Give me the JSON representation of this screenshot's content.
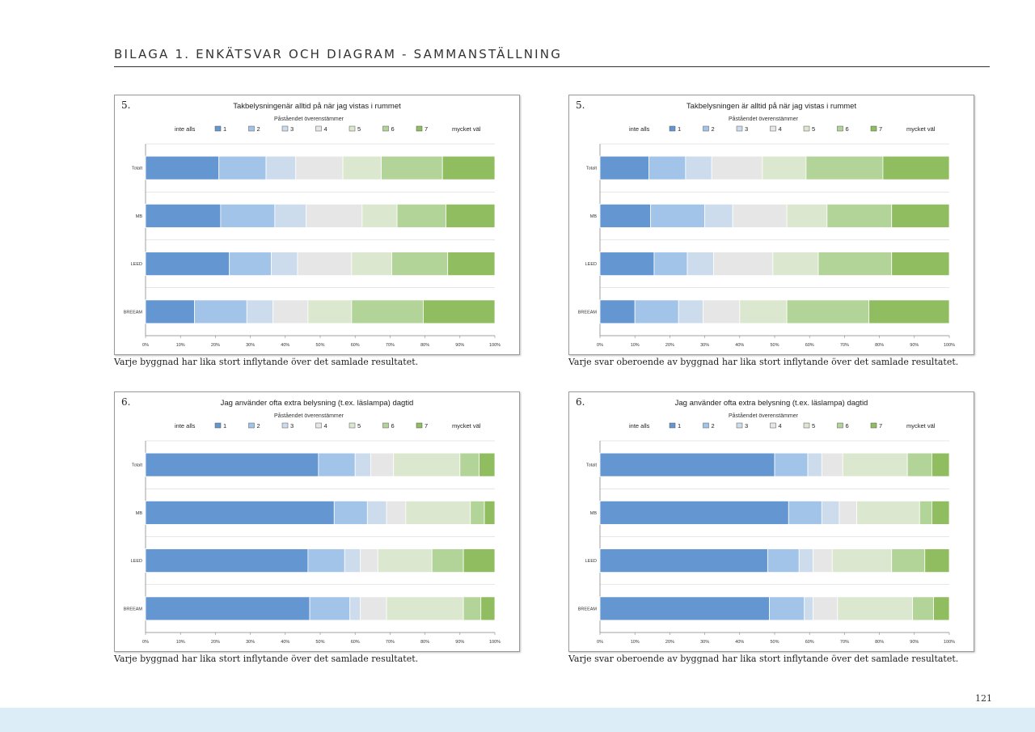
{
  "header": {
    "title": "BILAGA 1. ENKÄTSVAR OCH DIAGRAM - SAMMANSTÄLLNING"
  },
  "page_number": "121",
  "colors": [
    "#6496d2",
    "#a3c4e9",
    "#ccdcec",
    "#e6e6e6",
    "#dbe7ce",
    "#b3d498",
    "#8fbd5f"
  ],
  "charts": [
    {
      "caption": "Varje byggnad har lika stort inflytande över det samlade resultatet."
    },
    {
      "caption": "Varje svar oberoende av byggnad har lika stort inflytande över det samlade resultatet."
    },
    {
      "caption": "Varje byggnad har lika stort inflytande över det samlade resultatet."
    },
    {
      "caption": "Varje svar oberoende av byggnad har lika stort inflytande över det samlade resultatet."
    }
  ],
  "chart_data": [
    {
      "type": "bar",
      "orientation": "horizontal",
      "stacked": true,
      "number": "5.",
      "title": "Takbelysningenär alltid på när jag vistas i rummet",
      "subtitle": "Påståendet överenstämmer",
      "legend_low": "inte alls",
      "legend_high": "mycket väl",
      "legend_placement": "top",
      "categories": [
        "Totalt",
        "MB",
        "LEED",
        "BREEAM"
      ],
      "series": [
        {
          "name": "1",
          "values": [
            21,
            21.5,
            24,
            14
          ]
        },
        {
          "name": "2",
          "values": [
            13.5,
            15.5,
            12,
            15
          ]
        },
        {
          "name": "3",
          "values": [
            8.5,
            9,
            7.5,
            7.5
          ]
        },
        {
          "name": "4",
          "values": [
            13.5,
            16,
            15.5,
            10
          ]
        },
        {
          "name": "5",
          "values": [
            11,
            10,
            11.5,
            12.5
          ]
        },
        {
          "name": "6",
          "values": [
            17.5,
            14,
            16,
            20.5
          ]
        },
        {
          "name": "7",
          "values": [
            15,
            14,
            13.5,
            20.5
          ]
        }
      ],
      "xticks": [
        "0%",
        "10%",
        "20%",
        "30%",
        "40%",
        "50%",
        "60%",
        "70%",
        "80%",
        "90%",
        "100%"
      ],
      "xlim": [
        0,
        100
      ],
      "grid": true
    },
    {
      "type": "bar",
      "orientation": "horizontal",
      "stacked": true,
      "number": "5.",
      "title": "Takbelysningen är alltid på när jag vistas i rummet",
      "subtitle": "Påståendet överenstämmer",
      "legend_low": "inte alls",
      "legend_high": "mycket väl",
      "legend_placement": "top",
      "categories": [
        "Totalt",
        "MB",
        "LEED",
        "BREEAM"
      ],
      "series": [
        {
          "name": "1",
          "values": [
            14,
            14.5,
            15.5,
            10
          ]
        },
        {
          "name": "2",
          "values": [
            10.5,
            15.5,
            9.5,
            12.5
          ]
        },
        {
          "name": "3",
          "values": [
            7.5,
            8,
            7.5,
            7
          ]
        },
        {
          "name": "4",
          "values": [
            14.5,
            15.5,
            17,
            10.5
          ]
        },
        {
          "name": "5",
          "values": [
            12.5,
            11.5,
            13,
            13.5
          ]
        },
        {
          "name": "6",
          "values": [
            22,
            18.5,
            21,
            23.5
          ]
        },
        {
          "name": "7",
          "values": [
            19,
            16.5,
            16.5,
            23
          ]
        }
      ],
      "xticks": [
        "0%",
        "10%",
        "20%",
        "30%",
        "40%",
        "50%",
        "60%",
        "70%",
        "80%",
        "90%",
        "100%"
      ],
      "xlim": [
        0,
        100
      ],
      "grid": true
    },
    {
      "type": "bar",
      "orientation": "horizontal",
      "stacked": true,
      "number": "6.",
      "title": "Jag använder ofta extra belysning (t.ex. läslampa) dagtid",
      "subtitle": "Påståendet överenstämmer",
      "legend_low": "inte alls",
      "legend_high": "mycket väl",
      "legend_placement": "top",
      "categories": [
        "Totalt",
        "MB",
        "LEED",
        "BREEAM"
      ],
      "series": [
        {
          "name": "1",
          "values": [
            49.5,
            54,
            46.5,
            47
          ]
        },
        {
          "name": "2",
          "values": [
            10.5,
            9.5,
            10.5,
            11.5
          ]
        },
        {
          "name": "3",
          "values": [
            4.5,
            5.5,
            4.5,
            3
          ]
        },
        {
          "name": "4",
          "values": [
            6.5,
            5.5,
            5,
            7.5
          ]
        },
        {
          "name": "5",
          "values": [
            19,
            18.5,
            15.5,
            22
          ]
        },
        {
          "name": "6",
          "values": [
            5.5,
            4,
            9,
            5
          ]
        },
        {
          "name": "7",
          "values": [
            4.5,
            3,
            9,
            4
          ]
        }
      ],
      "xticks": [
        "0%",
        "10%",
        "20%",
        "30%",
        "40%",
        "50%",
        "60%",
        "70%",
        "80%",
        "90%",
        "100%"
      ],
      "xlim": [
        0,
        100
      ],
      "grid": true
    },
    {
      "type": "bar",
      "orientation": "horizontal",
      "stacked": true,
      "number": "6.",
      "title": "Jag använder ofta extra belysning (t.ex. läslampa) dagtid",
      "subtitle": "Påståendet överenstämmer",
      "legend_low": "inte alls",
      "legend_high": "mycket väl",
      "legend_placement": "top",
      "categories": [
        "Totalt",
        "MB",
        "LEED",
        "BREEAM"
      ],
      "series": [
        {
          "name": "1",
          "values": [
            50,
            54,
            48,
            48.5
          ]
        },
        {
          "name": "2",
          "values": [
            9.5,
            9.5,
            9,
            10
          ]
        },
        {
          "name": "3",
          "values": [
            4,
            5,
            4,
            2.5
          ]
        },
        {
          "name": "4",
          "values": [
            6,
            5,
            5.5,
            7
          ]
        },
        {
          "name": "5",
          "values": [
            18.5,
            18,
            17,
            21.5
          ]
        },
        {
          "name": "6",
          "values": [
            7,
            3.5,
            9.5,
            6
          ]
        },
        {
          "name": "7",
          "values": [
            5,
            5,
            7,
            4.5
          ]
        }
      ],
      "xticks": [
        "0%",
        "10%",
        "20%",
        "30%",
        "40%",
        "50%",
        "60%",
        "70%",
        "80%",
        "90%",
        "100%"
      ],
      "xlim": [
        0,
        100
      ],
      "grid": true
    }
  ]
}
